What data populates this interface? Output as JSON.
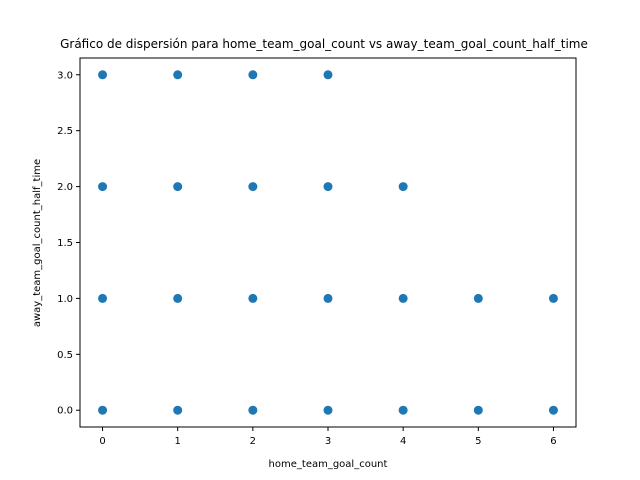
{
  "chart_data": {
    "type": "scatter",
    "title": "Gráfico de dispersión para home_team_goal_count vs away_team_goal_count_half_time",
    "xlabel": "home_team_goal_count",
    "ylabel": "away_team_goal_count_half_time",
    "xlim": [
      -0.3,
      6.3
    ],
    "ylim": [
      -0.15,
      3.15
    ],
    "xticks": [
      0,
      1,
      2,
      3,
      4,
      5,
      6
    ],
    "yticks": [
      0.0,
      0.5,
      1.0,
      1.5,
      2.0,
      2.5,
      3.0
    ],
    "grid": false,
    "marker_color": "#1f77b4",
    "points": [
      {
        "x": 0,
        "y": 0
      },
      {
        "x": 1,
        "y": 0
      },
      {
        "x": 2,
        "y": 0
      },
      {
        "x": 3,
        "y": 0
      },
      {
        "x": 4,
        "y": 0
      },
      {
        "x": 5,
        "y": 0
      },
      {
        "x": 6,
        "y": 0
      },
      {
        "x": 0,
        "y": 1
      },
      {
        "x": 1,
        "y": 1
      },
      {
        "x": 2,
        "y": 1
      },
      {
        "x": 3,
        "y": 1
      },
      {
        "x": 4,
        "y": 1
      },
      {
        "x": 5,
        "y": 1
      },
      {
        "x": 6,
        "y": 1
      },
      {
        "x": 0,
        "y": 2
      },
      {
        "x": 1,
        "y": 2
      },
      {
        "x": 2,
        "y": 2
      },
      {
        "x": 3,
        "y": 2
      },
      {
        "x": 4,
        "y": 2
      },
      {
        "x": 0,
        "y": 3
      },
      {
        "x": 1,
        "y": 3
      },
      {
        "x": 2,
        "y": 3
      },
      {
        "x": 3,
        "y": 3
      }
    ]
  }
}
